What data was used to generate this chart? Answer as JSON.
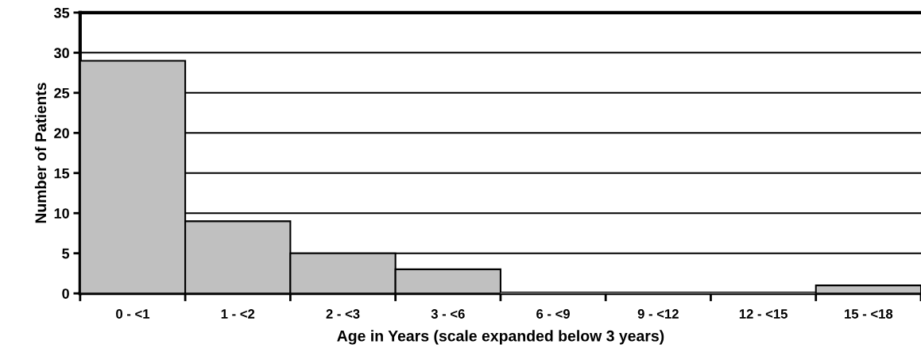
{
  "chart_data": {
    "type": "bar",
    "xlabel": "Age in Years (scale expanded below 3 years)",
    "ylabel": "Number of Patients",
    "categories": [
      "0 - <1",
      "1 - <2",
      "2 - <3",
      "3 - <6",
      "6 - <9",
      "9 - <12",
      "12 - <15",
      "15 - <18"
    ],
    "values": [
      29,
      9,
      5,
      3,
      0,
      0,
      0,
      1
    ],
    "color": "#c0c0c0",
    "ylim": [
      0,
      35
    ],
    "yticks": [
      0,
      5,
      10,
      15,
      20,
      25,
      30,
      35
    ],
    "grid": "y"
  }
}
